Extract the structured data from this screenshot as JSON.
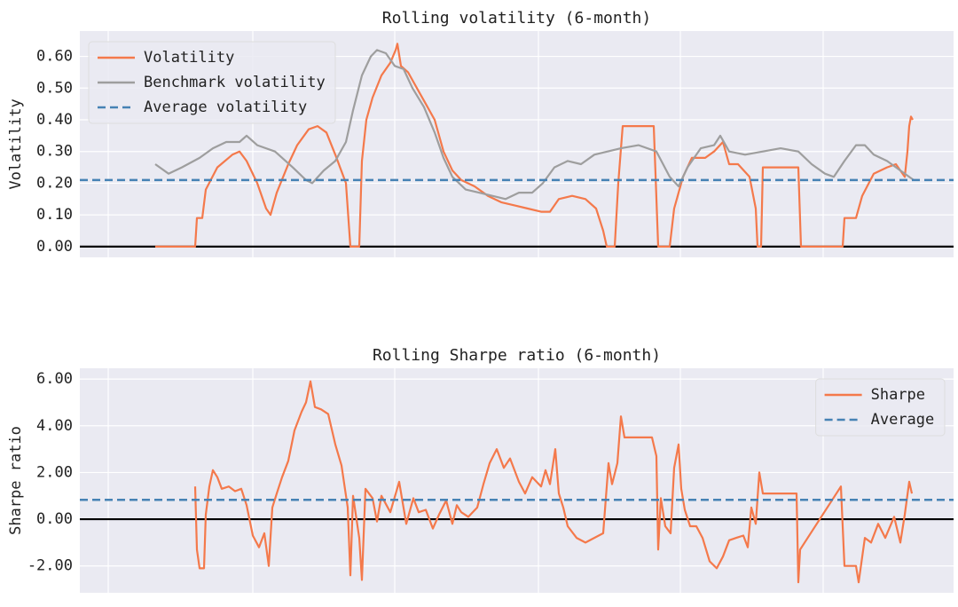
{
  "chart_data": [
    {
      "type": "line",
      "title": "Rolling volatility (6-month)",
      "ylabel": "Volatility",
      "legend": "upper left",
      "grid": true,
      "xlim": [
        90,
        1075
      ],
      "xticks": [
        122,
        285,
        445,
        607,
        767,
        928
      ],
      "ylim": [
        -0.034,
        0.68
      ],
      "yticks": [
        {
          "value": 0,
          "label": "0.00"
        },
        {
          "value": 0.1,
          "label": "0.10"
        },
        {
          "value": 0.2,
          "label": "0.20"
        },
        {
          "value": 0.3,
          "label": "0.30"
        },
        {
          "value": 0.4,
          "label": "0.40"
        },
        {
          "value": 0.5,
          "label": "0.50"
        },
        {
          "value": 0.6,
          "label": "0.60"
        }
      ],
      "series": [
        {
          "name": "Volatility",
          "color": "#f4794b",
          "x": [
            175,
            220,
            222,
            228,
            232,
            245,
            262,
            270,
            278,
            290,
            300,
            305,
            312,
            325,
            335,
            348,
            358,
            368,
            378,
            390,
            395,
            405,
            408,
            413,
            420,
            430,
            440,
            446,
            448,
            452,
            460,
            470,
            480,
            490,
            500,
            510,
            520,
            535,
            550,
            565,
            580,
            595,
            610,
            620,
            630,
            645,
            660,
            672,
            680,
            684,
            693,
            697,
            702,
            737,
            742,
            755,
            760,
            770,
            780,
            795,
            805,
            815,
            822,
            832,
            845,
            852,
            854,
            858,
            860,
            900,
            903,
            950,
            952,
            965,
            972,
            985,
            1000,
            1010,
            1020,
            1023,
            1025,
            1027,
            1029
          ],
          "values": [
            0,
            0,
            0.09,
            0.09,
            0.18,
            0.25,
            0.29,
            0.3,
            0.27,
            0.2,
            0.12,
            0.1,
            0.17,
            0.26,
            0.32,
            0.37,
            0.38,
            0.36,
            0.29,
            0.2,
            0,
            0,
            0.27,
            0.4,
            0.47,
            0.54,
            0.58,
            0.62,
            0.64,
            0.57,
            0.55,
            0.5,
            0.45,
            0.4,
            0.3,
            0.24,
            0.21,
            0.19,
            0.16,
            0.14,
            0.13,
            0.12,
            0.11,
            0.11,
            0.15,
            0.16,
            0.15,
            0.12,
            0.05,
            0,
            0,
            0.2,
            0.38,
            0.38,
            0,
            0,
            0.12,
            0.22,
            0.28,
            0.28,
            0.3,
            0.33,
            0.26,
            0.26,
            0.22,
            0.12,
            0,
            0,
            0.25,
            0.25,
            0,
            0,
            0.09,
            0.09,
            0.16,
            0.23,
            0.25,
            0.26,
            0.22,
            0.3,
            0.38,
            0.41,
            0.4
          ]
        },
        {
          "name": "Benchmark volatility",
          "color": "#9e9e9e",
          "x": [
            175,
            190,
            205,
            225,
            240,
            255,
            270,
            278,
            290,
            310,
            330,
            345,
            352,
            365,
            378,
            390,
            398,
            408,
            418,
            425,
            435,
            445,
            455,
            465,
            478,
            490,
            500,
            510,
            525,
            540,
            555,
            570,
            585,
            600,
            612,
            625,
            640,
            655,
            670,
            685,
            700,
            720,
            740,
            755,
            765,
            775,
            790,
            805,
            812,
            822,
            840,
            860,
            880,
            900,
            915,
            930,
            940,
            952,
            965,
            975,
            985,
            1000,
            1015,
            1030
          ],
          "values": [
            0.26,
            0.23,
            0.25,
            0.28,
            0.31,
            0.33,
            0.33,
            0.35,
            0.32,
            0.3,
            0.25,
            0.21,
            0.2,
            0.24,
            0.27,
            0.33,
            0.43,
            0.54,
            0.6,
            0.62,
            0.61,
            0.57,
            0.56,
            0.5,
            0.44,
            0.36,
            0.28,
            0.22,
            0.18,
            0.17,
            0.16,
            0.15,
            0.17,
            0.17,
            0.2,
            0.25,
            0.27,
            0.26,
            0.29,
            0.3,
            0.31,
            0.32,
            0.3,
            0.22,
            0.19,
            0.25,
            0.31,
            0.32,
            0.35,
            0.3,
            0.29,
            0.3,
            0.31,
            0.3,
            0.26,
            0.23,
            0.22,
            0.27,
            0.32,
            0.32,
            0.29,
            0.27,
            0.24,
            0.21
          ]
        }
      ],
      "average": {
        "name": "Average volatility",
        "color": "#4682b4",
        "value": 0.21
      }
    },
    {
      "type": "line",
      "title": "Rolling Sharpe ratio (6-month)",
      "ylabel": "Sharpe ratio",
      "legend": "upper right",
      "grid": true,
      "xlim": [
        90,
        1075
      ],
      "xticks": [
        122,
        285,
        445,
        607,
        767,
        928
      ],
      "ylim": [
        -3.15,
        6.46
      ],
      "yticks": [
        {
          "value": -2,
          "label": "-2.00"
        },
        {
          "value": 0,
          "label": "0.00"
        },
        {
          "value": 2,
          "label": "2.00"
        },
        {
          "value": 4,
          "label": "4.00"
        },
        {
          "value": 6,
          "label": "6.00"
        }
      ],
      "series": [
        {
          "name": "Sharpe",
          "color": "#f4794b",
          "x": [
            220,
            222,
            225,
            230,
            232,
            236,
            240,
            245,
            250,
            258,
            265,
            272,
            278,
            285,
            292,
            298,
            303,
            307,
            312,
            318,
            325,
            332,
            340,
            345,
            350,
            355,
            362,
            370,
            378,
            385,
            392,
            395,
            398,
            405,
            408,
            412,
            420,
            425,
            430,
            440,
            450,
            458,
            466,
            472,
            480,
            488,
            495,
            503,
            510,
            515,
            520,
            528,
            538,
            545,
            552,
            560,
            568,
            575,
            585,
            592,
            600,
            610,
            615,
            620,
            626,
            630,
            635,
            640,
            650,
            660,
            670,
            680,
            686,
            690,
            696,
            700,
            704,
            735,
            740,
            742,
            745,
            750,
            756,
            760,
            765,
            768,
            772,
            778,
            785,
            792,
            800,
            808,
            815,
            822,
            830,
            838,
            843,
            847,
            852,
            856,
            860,
            898,
            900,
            902,
            948,
            952,
            965,
            968,
            975,
            982,
            990,
            998,
            1008,
            1015,
            1020,
            1025,
            1028
          ],
          "values": [
            1.4,
            -1.3,
            -2.1,
            -2.1,
            0.2,
            1.4,
            2.1,
            1.8,
            1.3,
            1.4,
            1.2,
            1.3,
            0.6,
            -0.7,
            -1.2,
            -0.6,
            -2,
            0.5,
            1.1,
            1.8,
            2.5,
            3.8,
            4.6,
            5,
            5.9,
            4.8,
            4.7,
            4.5,
            3.2,
            2.3,
            0.5,
            -2.4,
            1,
            -0.8,
            -2.6,
            1.3,
            0.9,
            -0.1,
            1,
            0.3,
            1.6,
            -0.2,
            0.9,
            0.3,
            0.4,
            -0.4,
            0.2,
            0.8,
            -0.2,
            0.6,
            0.3,
            0.1,
            0.5,
            1.5,
            2.4,
            3,
            2.2,
            2.6,
            1.6,
            1.1,
            1.8,
            1.4,
            2.1,
            1.5,
            3,
            1.1,
            0.5,
            -0.3,
            -0.8,
            -1,
            -0.8,
            -0.6,
            2.4,
            1.5,
            2.4,
            4.4,
            3.5,
            3.5,
            2.7,
            -1.3,
            0.9,
            -0.3,
            -0.6,
            2.2,
            3.2,
            1.3,
            0.4,
            -0.3,
            -0.3,
            -0.8,
            -1.8,
            -2.1,
            -1.6,
            -0.9,
            -0.8,
            -0.7,
            -1.2,
            0.5,
            -0.2,
            2,
            1.1,
            1.1,
            -2.7,
            -1.3,
            1.4,
            -2,
            -2,
            -2.7,
            -0.8,
            -1,
            -0.2,
            -0.8,
            0.1,
            -1,
            0.2,
            1.6,
            1.1
          ]
        }
      ],
      "average": {
        "name": "Average",
        "color": "#4682b4",
        "value": 0.83
      }
    }
  ]
}
